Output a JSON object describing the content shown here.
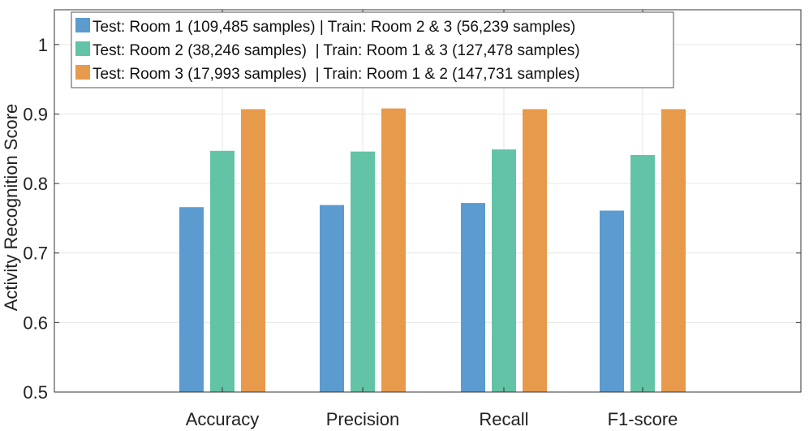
{
  "chart_data": {
    "type": "bar",
    "title": "",
    "xlabel": "",
    "ylabel": "Activity Recognition Score",
    "ylim": [
      0.5,
      1.05
    ],
    "yticks": [
      "0.5",
      "0.6",
      "0.7",
      "0.8",
      "0.9",
      "1"
    ],
    "grid": true,
    "legend_position": "top-left",
    "categories": [
      "Accuracy",
      "Precision",
      "Recall",
      "F1-score"
    ],
    "series": [
      {
        "name": "Test: Room 1 (109,485 samples) | Train: Room 2 & 3 (56,239 samples)",
        "color": "#5b9bd0",
        "values": [
          0.766,
          0.769,
          0.772,
          0.761
        ]
      },
      {
        "name": "Test: Room 2 (38,246 samples)  | Train: Room 1 & 3 (127,478 samples)",
        "color": "#63c3a6",
        "values": [
          0.847,
          0.846,
          0.849,
          0.841
        ]
      },
      {
        "name": "Test: Room 3 (17,993 samples)  | Train: Room 1 & 2 (147,731 samples)",
        "color": "#e89a4c",
        "values": [
          0.907,
          0.908,
          0.907,
          0.907
        ]
      }
    ]
  }
}
